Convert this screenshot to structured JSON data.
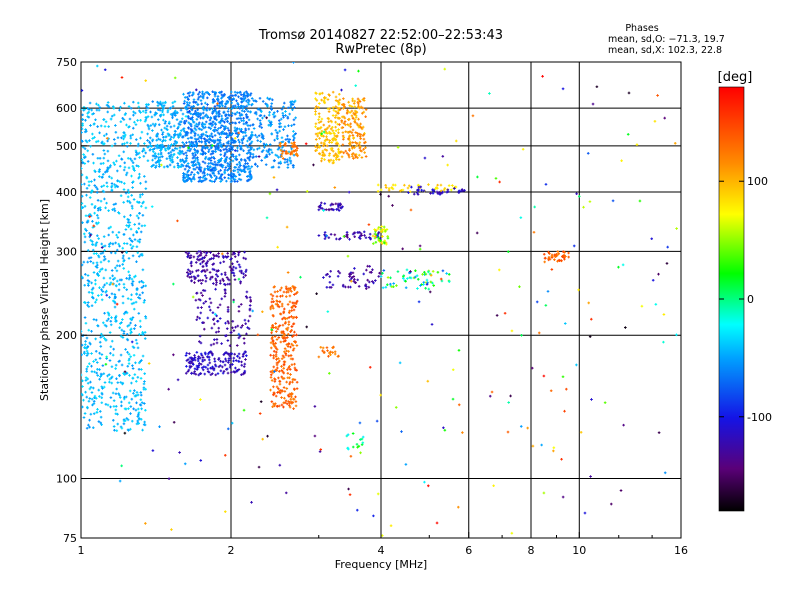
{
  "chart_data": {
    "type": "scatter",
    "title": "Tromsø 20140827 22:52:00–22:53:43",
    "subtitle": "RwPretec (8p)",
    "xlabel": "Frequency [MHz]",
    "ylabel": "Stationary phase Virtual Height [km]",
    "x_scale": "log",
    "y_scale": "log",
    "xlim": [
      1,
      16
    ],
    "ylim": [
      75,
      750
    ],
    "x_ticks": [
      1,
      2,
      4,
      6,
      8,
      10,
      16
    ],
    "y_ticks": [
      75,
      100,
      200,
      300,
      400,
      500,
      600,
      750
    ],
    "x_tick_labels": [
      "1",
      "2",
      "4",
      "6",
      "8",
      "10",
      "16"
    ],
    "y_tick_labels": [
      "75",
      "100",
      "200",
      "300",
      "400",
      "500",
      "600",
      "750"
    ],
    "grid_x": [
      2,
      4,
      6,
      8,
      10
    ],
    "grid_y": [
      100,
      200,
      300,
      400,
      500,
      600
    ],
    "stats": {
      "heading": "Phases",
      "line_o": "mean, sd,O: −71.3, 19.7",
      "line_x": "mean, sd,X: 102.3, 22.8"
    },
    "colorbar": {
      "label": "[deg]",
      "min": -180,
      "max": 180,
      "ticks": [
        100,
        0,
        -100
      ],
      "tick_labels": [
        "100",
        "0",
        "-100"
      ],
      "colormap": "rainbow (black→purple→blue→cyan→green→yellow→orange→red)"
    },
    "clusters": [
      {
        "f": [
          1.0,
          1.35
        ],
        "h": [
          125,
          620
        ],
        "phase": [
          -55,
          -30
        ],
        "n": 900
      },
      {
        "f": [
          1.35,
          1.6
        ],
        "h": [
          450,
          620
        ],
        "phase": [
          -60,
          -35
        ],
        "n": 250
      },
      {
        "f": [
          1.6,
          2.2
        ],
        "h": [
          420,
          650
        ],
        "phase": [
          -75,
          -45
        ],
        "n": 900
      },
      {
        "f": [
          2.2,
          2.7
        ],
        "h": [
          450,
          630
        ],
        "phase": [
          -70,
          -40
        ],
        "n": 200
      },
      {
        "f": [
          2.5,
          2.72
        ],
        "h": [
          470,
          510
        ],
        "phase": [
          110,
          140
        ],
        "n": 40
      },
      {
        "f": [
          1.62,
          2.15
        ],
        "h": [
          165,
          185
        ],
        "phase": [
          -130,
          -100
        ],
        "n": 160
      },
      {
        "f": [
          1.62,
          2.15
        ],
        "h": [
          255,
          300
        ],
        "phase": [
          -140,
          -110
        ],
        "n": 160
      },
      {
        "f": [
          1.7,
          2.2
        ],
        "h": [
          190,
          250
        ],
        "phase": [
          -140,
          -110
        ],
        "n": 100
      },
      {
        "f": [
          2.4,
          2.72
        ],
        "h": [
          140,
          255
        ],
        "phase": [
          120,
          150
        ],
        "n": 300
      },
      {
        "f": [
          2.95,
          3.3
        ],
        "h": [
          460,
          650
        ],
        "phase": [
          80,
          110
        ],
        "n": 180
      },
      {
        "f": [
          3.3,
          3.75
        ],
        "h": [
          470,
          630
        ],
        "phase": [
          90,
          130
        ],
        "n": 160
      },
      {
        "f": [
          3.0,
          3.35
        ],
        "h": [
          365,
          380
        ],
        "phase": [
          -140,
          -110
        ],
        "n": 35
      },
      {
        "f": [
          3.0,
          4.0
        ],
        "h": [
          318,
          330
        ],
        "phase": [
          -140,
          -110
        ],
        "n": 45
      },
      {
        "f": [
          3.05,
          4.0
        ],
        "h": [
          250,
          280
        ],
        "phase": [
          -140,
          -110
        ],
        "n": 55
      },
      {
        "f": [
          3.9,
          5.8
        ],
        "h": [
          400,
          415
        ],
        "phase": [
          70,
          100
        ],
        "n": 40
      },
      {
        "f": [
          4.5,
          5.9
        ],
        "h": [
          395,
          410
        ],
        "phase": [
          -130,
          -100
        ],
        "n": 35
      },
      {
        "f": [
          3.85,
          4.15
        ],
        "h": [
          310,
          340
        ],
        "phase": [
          20,
          100
        ],
        "n": 40
      },
      {
        "f": [
          4.0,
          5.5
        ],
        "h": [
          250,
          275
        ],
        "phase": [
          -80,
          60
        ],
        "n": 60
      },
      {
        "f": [
          8.5,
          9.6
        ],
        "h": [
          285,
          300
        ],
        "phase": [
          120,
          150
        ],
        "n": 40
      },
      {
        "f": [
          3.0,
          3.3
        ],
        "h": [
          180,
          190
        ],
        "phase": [
          110,
          140
        ],
        "n": 20
      },
      {
        "f": [
          3.4,
          3.7
        ],
        "h": [
          115,
          125
        ],
        "phase": [
          -40,
          30
        ],
        "n": 15
      },
      {
        "f": [
          1.0,
          16.0
        ],
        "h": [
          75,
          750
        ],
        "phase": [
          -180,
          180
        ],
        "n": 260
      }
    ]
  }
}
